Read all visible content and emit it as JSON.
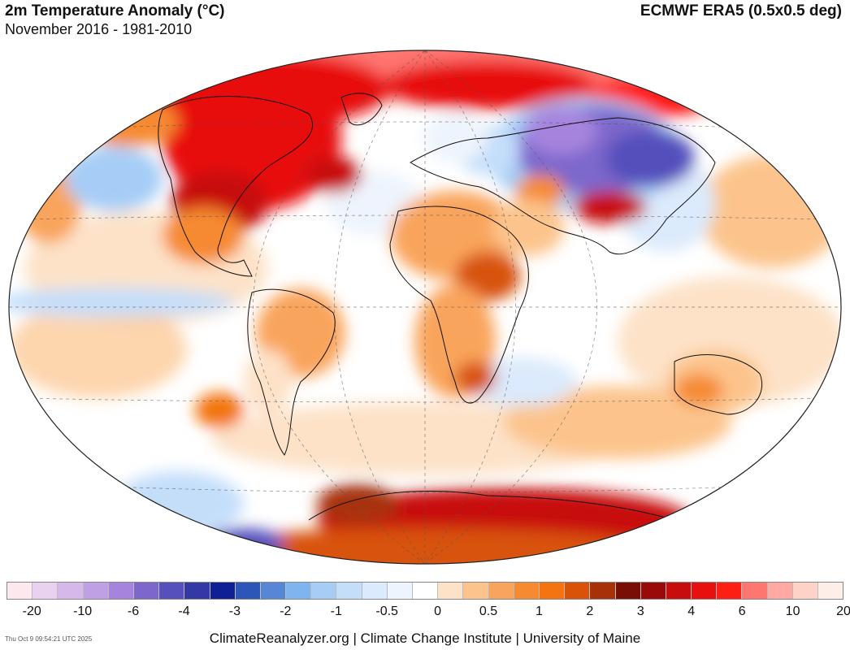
{
  "header": {
    "title": "2m Temperature Anomaly (°C)",
    "subtitle": "November 2016 - 1981-2010",
    "source": "ECMWF ERA5 (0.5x0.5 deg)"
  },
  "legend": {
    "colors": [
      "#fde8ee",
      "#e8d2f0",
      "#d6b8ea",
      "#c0a0e4",
      "#a684de",
      "#7d67cc",
      "#5550bc",
      "#3437a6",
      "#0f1f96",
      "#2c56b8",
      "#5687d6",
      "#7fb5ee",
      "#a6cdf6",
      "#c4defa",
      "#dbeafc",
      "#eef4fd",
      "#ffffff",
      "#fde2c8",
      "#fcc48c",
      "#f9a45c",
      "#f68a30",
      "#f37410",
      "#d85308",
      "#a83208",
      "#780e06",
      "#9a0a08",
      "#c80e0c",
      "#e8100e",
      "#ff1e14",
      "#ff7570",
      "#ffa9a2",
      "#fdd3c8",
      "#fdeee8"
    ],
    "tick_labels": [
      "-20",
      "-10",
      "-6",
      "-4",
      "-3",
      "-2",
      "-1",
      "-0.5",
      "0",
      "0.5",
      "1",
      "2",
      "3",
      "4",
      "6",
      "10",
      "20"
    ]
  },
  "map": {
    "projection": "Winkel Tripel",
    "colors": {
      "land_outline": "#111111",
      "graticule": "#555555",
      "strong_warm": "#e8100e",
      "warm": "#f68a30",
      "mild_warm": "#fcc48c",
      "cool": "#a6cdf6",
      "strong_cool": "#5550bc"
    }
  },
  "footer": {
    "credit": "ClimateReanalyzer.org | Climate Change Institute | University of Maine",
    "timestamp": "Thu Oct  9 09:54:21 UTC 2025"
  }
}
